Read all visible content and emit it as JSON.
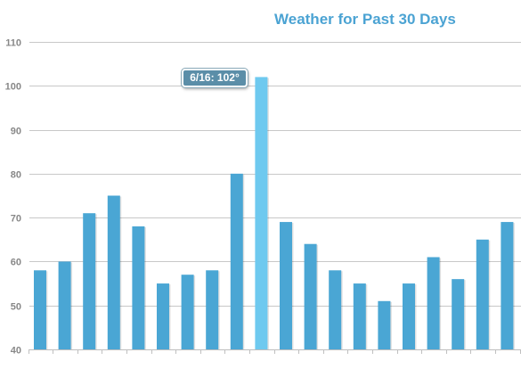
{
  "chart_data": {
    "type": "bar",
    "title": "Weather for Past 30 Days",
    "xlabel": "",
    "ylabel": "",
    "ylim": [
      40,
      110
    ],
    "yticks": [
      40,
      50,
      60,
      70,
      80,
      90,
      100,
      110
    ],
    "grid": true,
    "values": [
      58,
      60,
      71,
      75,
      68,
      55,
      57,
      58,
      80,
      102,
      69,
      64,
      58,
      55,
      51,
      55,
      61,
      56,
      65,
      69
    ],
    "highlight_index": 9,
    "tooltip": "6/16: 102°"
  },
  "colors": {
    "bar": "#4aa6d4",
    "bar_highlight": "#6ec9ef",
    "title": "#4ba3d3",
    "tooltip_bg": "#5b8ea8",
    "grid": "#c8c8c8",
    "axis_text": "#888888"
  }
}
